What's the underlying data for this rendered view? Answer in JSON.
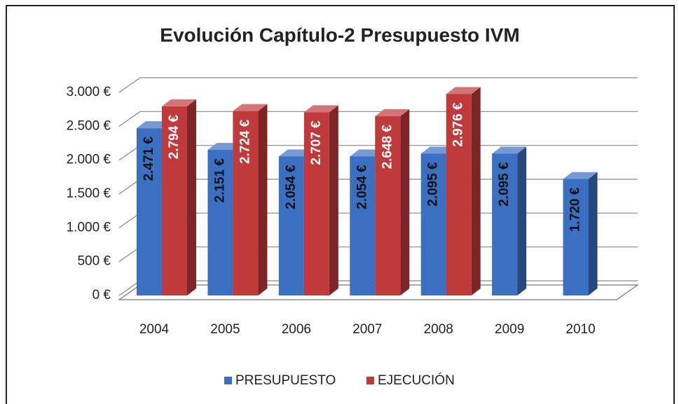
{
  "chart_data": {
    "type": "bar3d",
    "title": "Evolución Capítulo-2 Presupuesto IVM",
    "categories": [
      "2004",
      "2005",
      "2006",
      "2007",
      "2008",
      "2009",
      "2010"
    ],
    "series": [
      {
        "name": "PRESUPUESTO",
        "color": "#3b6fc2",
        "values": [
          2471,
          2151,
          2054,
          2054,
          2095,
          2095,
          1720
        ],
        "value_labels": [
          "2.471 €",
          "2.151 €",
          "2.054 €",
          "2.054 €",
          "2.095 €",
          "2.095 €",
          "1.720 €"
        ]
      },
      {
        "name": "EJECUCIÓN",
        "color": "#c0393b",
        "values": [
          2794,
          2724,
          2707,
          2648,
          2976,
          null,
          null
        ],
        "value_labels": [
          "2.794 €",
          "2.724 €",
          "2.707 €",
          "2.648 €",
          "2.976 €",
          null,
          null
        ]
      }
    ],
    "ylim": [
      0,
      3000
    ],
    "yticks": [
      {
        "value": 0,
        "label": "0 €"
      },
      {
        "value": 500,
        "label": "500 €"
      },
      {
        "value": 1000,
        "label": "1.000 €"
      },
      {
        "value": 1500,
        "label": "1.500 €"
      },
      {
        "value": 2000,
        "label": "2.000 €"
      },
      {
        "value": 2500,
        "label": "2.500 €"
      },
      {
        "value": 3000,
        "label": "3.000 €"
      }
    ],
    "grid": true,
    "legend": "bottom"
  }
}
